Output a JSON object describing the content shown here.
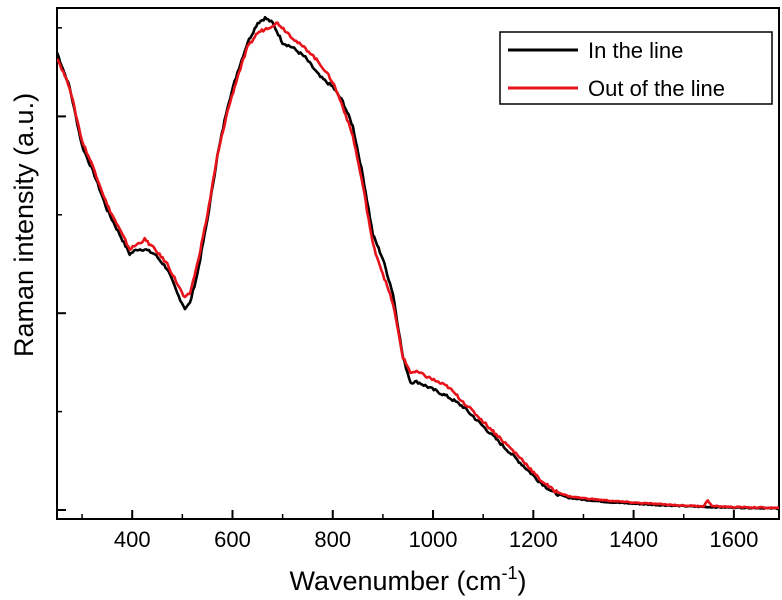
{
  "chart_data": {
    "type": "line",
    "xlabel": "Wavenumber (cm",
    "xlabel_sup": "-1",
    "xlabel_end": ")",
    "ylabel": "Raman intensity (a.u.)",
    "xlim": [
      250,
      1690
    ],
    "ylim": [
      0,
      1.0
    ],
    "x_ticks": [
      400,
      600,
      800,
      1000,
      1200,
      1400,
      1600
    ],
    "x_tick_labels": [
      "400",
      "600",
      "800",
      "1000",
      "1200",
      "1400",
      "1600"
    ],
    "y_major_ticks": [
      0.0,
      0.4,
      0.8
    ],
    "y_minor_ticks": [
      0.2,
      0.6,
      0.98
    ],
    "grid": false,
    "legend_position": "top-right",
    "series": [
      {
        "name": "In the line",
        "color": "#000000",
        "points": [
          [
            250,
            0.93
          ],
          [
            275,
            0.86
          ],
          [
            300,
            0.74
          ],
          [
            325,
            0.68
          ],
          [
            350,
            0.61
          ],
          [
            375,
            0.56
          ],
          [
            395,
            0.52
          ],
          [
            410,
            0.53
          ],
          [
            425,
            0.53
          ],
          [
            445,
            0.52
          ],
          [
            470,
            0.49
          ],
          [
            490,
            0.44
          ],
          [
            505,
            0.41
          ],
          [
            515,
            0.42
          ],
          [
            530,
            0.48
          ],
          [
            550,
            0.59
          ],
          [
            570,
            0.72
          ],
          [
            590,
            0.82
          ],
          [
            610,
            0.89
          ],
          [
            630,
            0.95
          ],
          [
            650,
            0.99
          ],
          [
            665,
            1.0
          ],
          [
            680,
            0.99
          ],
          [
            700,
            0.95
          ],
          [
            720,
            0.94
          ],
          [
            745,
            0.92
          ],
          [
            775,
            0.88
          ],
          [
            800,
            0.86
          ],
          [
            820,
            0.83
          ],
          [
            840,
            0.78
          ],
          [
            860,
            0.68
          ],
          [
            880,
            0.56
          ],
          [
            900,
            0.51
          ],
          [
            920,
            0.44
          ],
          [
            940,
            0.31
          ],
          [
            955,
            0.26
          ],
          [
            970,
            0.26
          ],
          [
            990,
            0.25
          ],
          [
            1010,
            0.24
          ],
          [
            1030,
            0.23
          ],
          [
            1060,
            0.21
          ],
          [
            1090,
            0.18
          ],
          [
            1120,
            0.15
          ],
          [
            1150,
            0.12
          ],
          [
            1180,
            0.09
          ],
          [
            1210,
            0.06
          ],
          [
            1240,
            0.035
          ],
          [
            1270,
            0.025
          ],
          [
            1300,
            0.021
          ],
          [
            1350,
            0.016
          ],
          [
            1400,
            0.013
          ],
          [
            1450,
            0.01
          ],
          [
            1500,
            0.008
          ],
          [
            1550,
            0.006
          ],
          [
            1600,
            0.005
          ],
          [
            1650,
            0.004
          ],
          [
            1690,
            0.003
          ]
        ]
      },
      {
        "name": "Out of the line",
        "color": "#e8141b",
        "points": [
          [
            250,
            0.92
          ],
          [
            275,
            0.86
          ],
          [
            300,
            0.75
          ],
          [
            325,
            0.69
          ],
          [
            350,
            0.62
          ],
          [
            375,
            0.57
          ],
          [
            395,
            0.53
          ],
          [
            410,
            0.54
          ],
          [
            425,
            0.55
          ],
          [
            445,
            0.53
          ],
          [
            470,
            0.5
          ],
          [
            490,
            0.46
          ],
          [
            505,
            0.43
          ],
          [
            515,
            0.44
          ],
          [
            530,
            0.5
          ],
          [
            550,
            0.6
          ],
          [
            570,
            0.72
          ],
          [
            590,
            0.81
          ],
          [
            610,
            0.88
          ],
          [
            630,
            0.94
          ],
          [
            650,
            0.97
          ],
          [
            670,
            0.98
          ],
          [
            690,
            0.99
          ],
          [
            710,
            0.97
          ],
          [
            730,
            0.95
          ],
          [
            755,
            0.93
          ],
          [
            780,
            0.9
          ],
          [
            800,
            0.87
          ],
          [
            820,
            0.82
          ],
          [
            840,
            0.76
          ],
          [
            860,
            0.66
          ],
          [
            880,
            0.54
          ],
          [
            900,
            0.48
          ],
          [
            920,
            0.42
          ],
          [
            940,
            0.31
          ],
          [
            955,
            0.28
          ],
          [
            970,
            0.28
          ],
          [
            990,
            0.27
          ],
          [
            1010,
            0.26
          ],
          [
            1030,
            0.25
          ],
          [
            1060,
            0.22
          ],
          [
            1090,
            0.19
          ],
          [
            1120,
            0.16
          ],
          [
            1150,
            0.13
          ],
          [
            1180,
            0.1
          ],
          [
            1210,
            0.065
          ],
          [
            1240,
            0.04
          ],
          [
            1270,
            0.028
          ],
          [
            1300,
            0.024
          ],
          [
            1350,
            0.019
          ],
          [
            1400,
            0.015
          ],
          [
            1450,
            0.012
          ],
          [
            1500,
            0.009
          ],
          [
            1540,
            0.008
          ],
          [
            1548,
            0.02
          ],
          [
            1556,
            0.008
          ],
          [
            1600,
            0.006
          ],
          [
            1650,
            0.005
          ],
          [
            1690,
            0.004
          ]
        ]
      }
    ]
  }
}
